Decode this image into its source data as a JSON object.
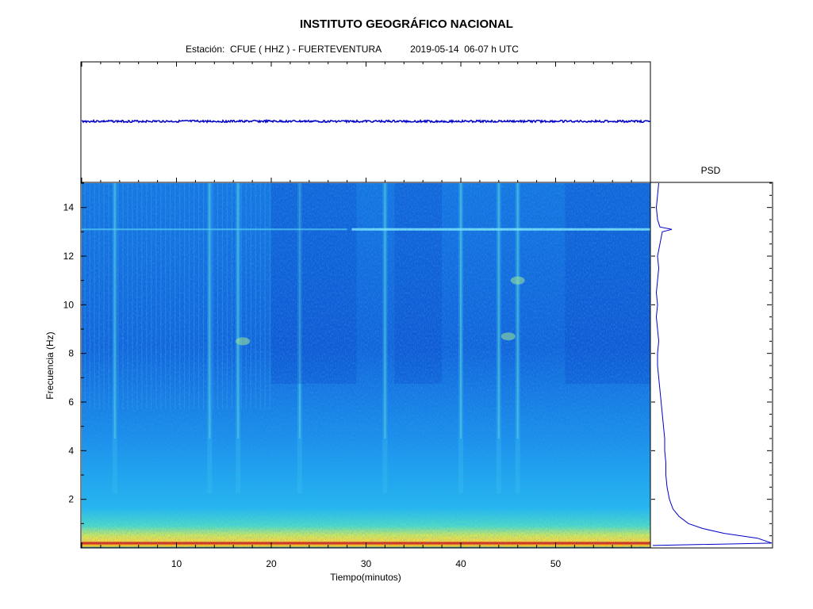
{
  "header": {
    "title": "INSTITUTO GEOGRÁFICO NACIONAL",
    "station_label": "Estación:",
    "station": "CFUE ( HHZ ) - FUERTEVENTURA",
    "date": "2019-05-14",
    "window": "06-07 h UTC"
  },
  "chart_data": [
    {
      "type": "line",
      "panel": "seismogram",
      "title": "",
      "xlim": [
        0,
        60
      ],
      "series": [
        {
          "color": "#0000c8",
          "trend": "flat, constant amplitude"
        }
      ]
    },
    {
      "type": "heatmap",
      "panel": "spectrogram",
      "xlabel": "Tiempo(minutos)",
      "ylabel": "Frecuencia  (Hz)",
      "xlim": [
        0,
        60
      ],
      "ylim": [
        0,
        15
      ],
      "xticks": [
        10,
        20,
        30,
        40,
        50
      ],
      "yticks": [
        2,
        4,
        6,
        8,
        10,
        12,
        14
      ],
      "colormap": "jet",
      "features": {
        "high_energy_band_hz": [
          0,
          1
        ],
        "horizontal_line_hz": 13.1,
        "vertical_bursts_min": [
          3.5,
          13.5,
          16.5,
          23,
          32,
          40,
          44,
          46
        ]
      }
    },
    {
      "type": "line",
      "panel": "psd",
      "title": "PSD",
      "ylim": [
        0,
        15
      ],
      "y": [
        0.1,
        0.2,
        0.4,
        0.6,
        0.8,
        1.0,
        1.3,
        1.6,
        2.0,
        2.5,
        3.0,
        3.5,
        4.0,
        4.5,
        5.0,
        5.5,
        6.0,
        6.5,
        7.0,
        7.5,
        8.0,
        8.5,
        9.0,
        9.5,
        10.0,
        10.5,
        11.0,
        11.5,
        12.0,
        12.5,
        13.0,
        13.1,
        13.2,
        13.5,
        14.0,
        14.5,
        15.0
      ],
      "x": [
        0.0,
        1.0,
        0.88,
        0.6,
        0.42,
        0.3,
        0.22,
        0.17,
        0.14,
        0.12,
        0.11,
        0.11,
        0.1,
        0.1,
        0.09,
        0.08,
        0.07,
        0.06,
        0.05,
        0.04,
        0.04,
        0.05,
        0.04,
        0.03,
        0.04,
        0.03,
        0.04,
        0.05,
        0.04,
        0.06,
        0.08,
        0.16,
        0.06,
        0.04,
        0.03,
        0.04,
        0.05
      ],
      "series": [
        {
          "color": "#0000c8"
        }
      ]
    }
  ]
}
